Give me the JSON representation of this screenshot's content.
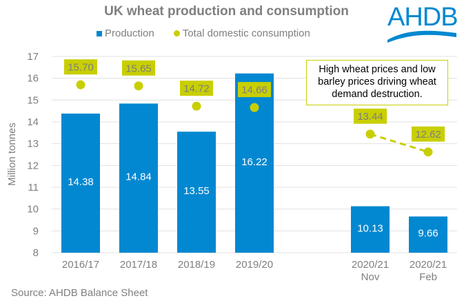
{
  "logo": {
    "text": "AHDB",
    "color": "#0288d1"
  },
  "source": "Source: AHDB Balance Sheet",
  "colors": {
    "production": "#0288d1",
    "consumption": "#c8cf00",
    "label_bg": "#c8cf00",
    "axis_text": "#7f7f7f",
    "grid": "#e0e0e0"
  },
  "chart_data": {
    "type": "bar",
    "title": "UK wheat production and consumption",
    "xlabel": "",
    "ylabel": "Million tonnes",
    "ylim": [
      8,
      17
    ],
    "yticks": [
      "8",
      "9",
      "10",
      "11",
      "12",
      "13",
      "14",
      "15",
      "16",
      "17"
    ],
    "grid": true,
    "legend_position": "top",
    "categories": [
      [
        "2016/17"
      ],
      [
        "2017/18"
      ],
      [
        "2018/19"
      ],
      [
        "2019/20"
      ],
      [],
      [
        "2020/21",
        "Nov"
      ],
      [
        "2020/21",
        "Feb"
      ]
    ],
    "series": [
      {
        "name": "Production",
        "type": "bar",
        "values": [
          14.38,
          14.84,
          13.55,
          16.22,
          null,
          10.13,
          9.66
        ],
        "labels": [
          "14.38",
          "14.84",
          "13.55",
          "16.22",
          null,
          "10.13",
          "9.66"
        ]
      },
      {
        "name": "Total domestic consumption",
        "type": "scatter",
        "values": [
          15.7,
          15.65,
          14.72,
          14.66,
          null,
          13.44,
          12.62
        ],
        "labels": [
          "15.70",
          "15.65",
          "14.72",
          "14.66",
          null,
          "13.44",
          "12.62"
        ],
        "dashed_link": [
          5,
          6
        ]
      }
    ],
    "annotations": [
      {
        "text_lines": [
          "High wheat prices and low",
          "barley prices driving wheat",
          "demand destruction."
        ],
        "position": "top-right"
      }
    ]
  }
}
